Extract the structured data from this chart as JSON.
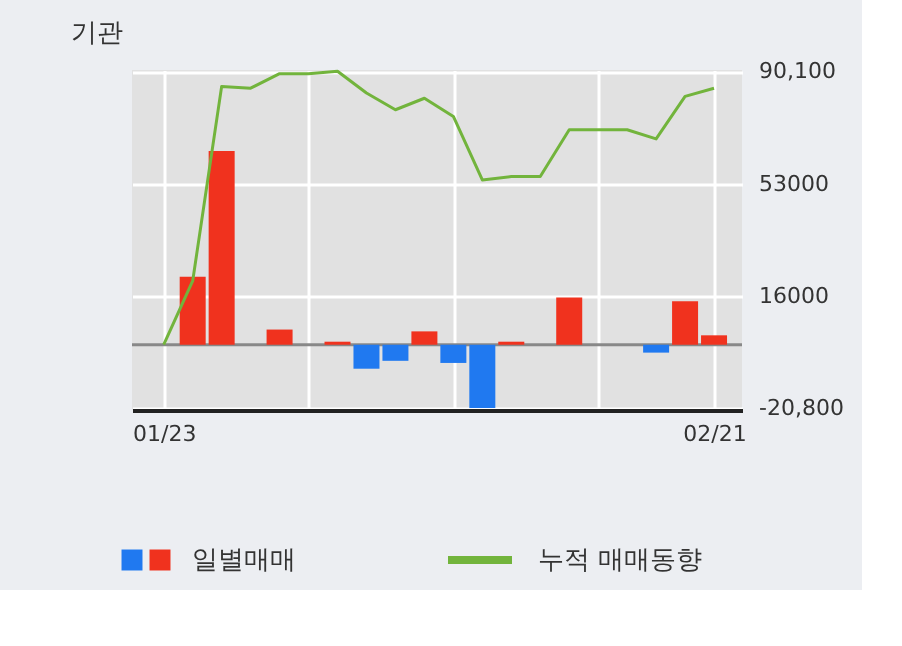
{
  "chart_data": {
    "type": "bar",
    "title": "기관",
    "categories": [
      "01/23",
      null,
      null,
      null,
      null,
      null,
      null,
      null,
      null,
      null,
      null,
      null,
      null,
      null,
      null,
      null,
      null,
      null,
      null,
      "02/21"
    ],
    "series": [
      {
        "name": "일별매매",
        "values": [
          0,
          22400,
          63800,
          0,
          5000,
          0,
          1000,
          -7900,
          -5300,
          4400,
          -6000,
          -20800,
          1000,
          0,
          15600,
          0,
          0,
          -2600,
          14300,
          3100
        ],
        "colors": [
          "#f0321e",
          "#f0321e",
          "#f0321e",
          "#f0321e",
          "#f0321e",
          "#f0321e",
          "#f0321e",
          "#2079f0",
          "#2079f0",
          "#f0321e",
          "#2079f0",
          "#2079f0",
          "#f0321e",
          "#f0321e",
          "#f0321e",
          "#f0321e",
          "#f0321e",
          "#2079f0",
          "#f0321e",
          "#f0321e"
        ]
      },
      {
        "name": "누적 매매동향",
        "type": "line",
        "color": "#72b43c",
        "values": [
          0,
          21000,
          85100,
          84500,
          89300,
          89300,
          90100,
          82900,
          77400,
          81200,
          75200,
          54300,
          55400,
          55400,
          70800,
          70800,
          70800,
          67800,
          81800,
          84500
        ]
      }
    ],
    "ylim": [
      -21500,
      90500
    ],
    "yticks": [
      {
        "value": 90100,
        "label": "90,100"
      },
      53000,
      16000,
      {
        "value": -20800,
        "label": "-20,800"
      }
    ],
    "ref_lines": [
      {
        "axis": "y",
        "value": 0,
        "color": "#888888"
      }
    ],
    "grid": true,
    "legend": "bottom"
  }
}
